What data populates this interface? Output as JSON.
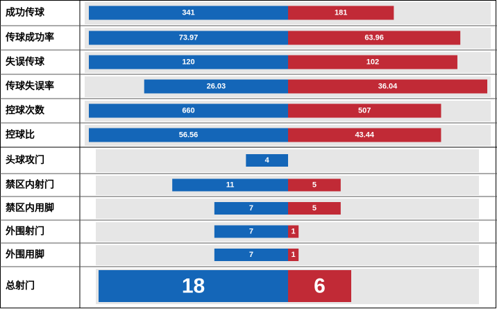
{
  "chart_data": [
    {
      "type": "bar",
      "normalize": "row",
      "categories": [
        "成功传球",
        "传球成功率",
        "失误传球",
        "传球失误率",
        "控球次数",
        "控球比"
      ],
      "series": [
        {
          "color": "#1466b8",
          "values": [
            341,
            73.97,
            120,
            26.03,
            660,
            56.56
          ]
        },
        {
          "color": "#c12a36",
          "values": [
            181,
            63.96,
            102,
            36.04,
            507,
            43.44
          ]
        }
      ]
    },
    {
      "type": "bar",
      "normalize": "all",
      "categories": [
        "头球攻门",
        "禁区内射门",
        "禁区内用脚",
        "外围射门",
        "外围用脚",
        "总射门"
      ],
      "series": [
        {
          "color": "#1466b8",
          "values": [
            4,
            11,
            7,
            7,
            7,
            18
          ]
        },
        {
          "color": "#c12a36",
          "values": [
            null,
            5,
            5,
            1,
            1,
            6
          ]
        }
      ]
    }
  ]
}
